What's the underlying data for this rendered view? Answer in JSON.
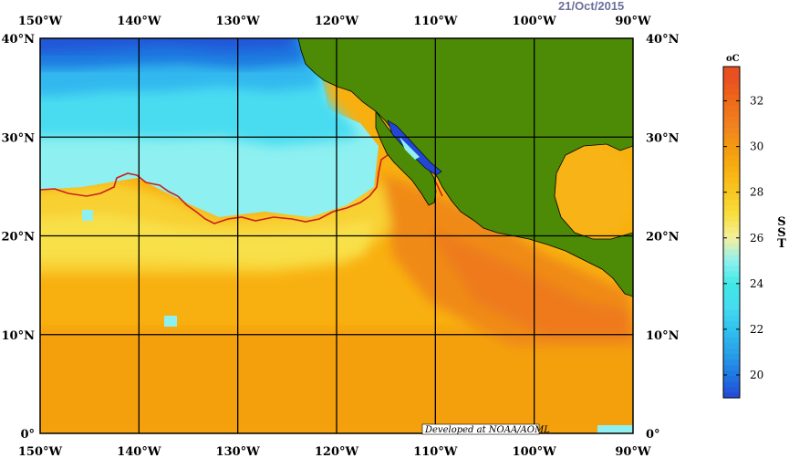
{
  "date": "21/Oct/2015",
  "credit": "Developed at NOAA/AOML",
  "colorbar": {
    "unit": "oC",
    "title_letters": [
      "S",
      "S",
      "T"
    ],
    "min": 19,
    "max": 33.5,
    "tick_values": [
      20,
      22,
      24,
      26,
      28,
      30,
      32
    ],
    "tick_labels": [
      "20",
      "22",
      "24",
      "26",
      "28",
      "30",
      "32"
    ],
    "colors": {
      "c19": "#2446d6",
      "c20": "#1e78e0",
      "c21": "#2aa0e8",
      "c22": "#30c0ee",
      "c23": "#45dcf0",
      "c24": "#40e8e6",
      "c25": "#8ef0f0",
      "c26": "#f4f0a0",
      "c27": "#f8e040",
      "c28": "#f8c820",
      "c29": "#f8b010",
      "c30": "#f49a10",
      "c31": "#f08020",
      "c32": "#ee6a18",
      "c33": "#e85020"
    }
  },
  "map": {
    "lon_ticks": [
      "150°W",
      "140°W",
      "130°W",
      "120°W",
      "110°W",
      "100°W",
      "90°W"
    ],
    "lat_ticks": [
      "40°N",
      "30°N",
      "20°N",
      "10°N",
      "0°"
    ],
    "land_color": "#4d8a05",
    "isotherm_color": "#c8201e",
    "grid_color": "#000000"
  }
}
